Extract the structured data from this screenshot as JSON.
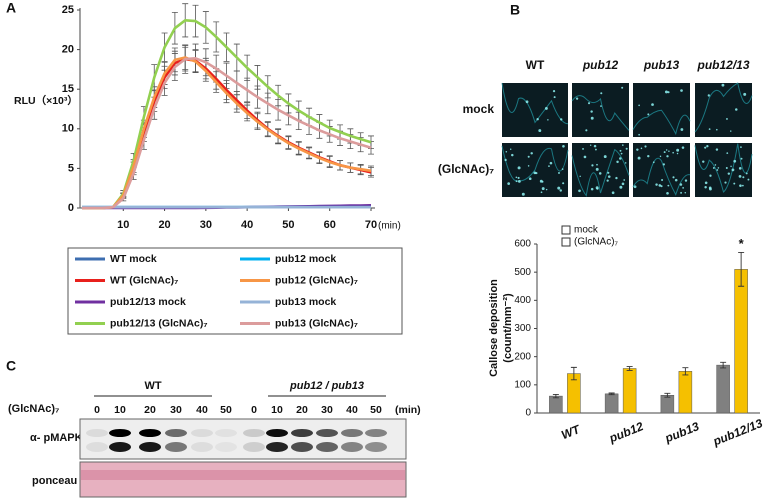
{
  "panel_labels": [
    "A",
    "B",
    "C"
  ],
  "chart_data": [
    {
      "type": "line",
      "ylabel": "RLU（×10³）",
      "xlabel": "(min)",
      "x": [
        0,
        2.5,
        5,
        7.5,
        10,
        12.5,
        15,
        17.5,
        20,
        22.5,
        25,
        27.5,
        30,
        32.5,
        35,
        37.5,
        40,
        42.5,
        45,
        47.5,
        50,
        52.5,
        55,
        57.5,
        60,
        62.5,
        65,
        67.5,
        70
      ],
      "xlim": [
        0,
        70
      ],
      "xticks": [
        10,
        20,
        30,
        40,
        50,
        60,
        70
      ],
      "ylim": [
        0,
        25
      ],
      "yticks": [
        0,
        5,
        10,
        15,
        20,
        25
      ],
      "legend": "bottom",
      "series": [
        {
          "name": "WT mock",
          "color": "#3d6eb0",
          "values": [
            0.1,
            0.1,
            0.1,
            0.1,
            0.1,
            0.1,
            0.1,
            0.1,
            0.1,
            0.1,
            0.1,
            0.1,
            0.1,
            0.1,
            0.1,
            0.1,
            0.1,
            0.1,
            0.1,
            0.1,
            0.1,
            0.1,
            0.1,
            0.1,
            0.1,
            0.1,
            0.1,
            0.1,
            0.1
          ]
        },
        {
          "name": "WT (GlcNAc)₇",
          "color": "#e8201c",
          "values": [
            0,
            0,
            0,
            0.1,
            1.5,
            5,
            9.5,
            13.5,
            16.5,
            18.3,
            18.8,
            18.6,
            17.6,
            16.3,
            14.9,
            13.6,
            12.3,
            11.1,
            10,
            9.1,
            8.3,
            7.6,
            7,
            6.4,
            5.9,
            5.4,
            5.1,
            4.8,
            4.5
          ],
          "errors": [
            0,
            0,
            0,
            0.1,
            0.3,
            0.8,
            1.1,
            1.3,
            1.4,
            1.5,
            1.5,
            1.4,
            1.3,
            1.3,
            1.2,
            1.1,
            1,
            1,
            0.9,
            0.9,
            0.8,
            0.8,
            0.7,
            0.7,
            0.7,
            0.6,
            0.6,
            0.6,
            0.6
          ]
        },
        {
          "name": "pub12/13 mock",
          "color": "#7030a0",
          "values": [
            0,
            0,
            0,
            0,
            0,
            0,
            0,
            0,
            0,
            0,
            0,
            0,
            0.02,
            0.04,
            0.06,
            0.08,
            0.1,
            0.12,
            0.14,
            0.16,
            0.18,
            0.2,
            0.22,
            0.24,
            0.26,
            0.28,
            0.3,
            0.32,
            0.34
          ]
        },
        {
          "name": "pub12/13 (GlcNAc)₇",
          "color": "#92d050",
          "values": [
            0,
            0,
            0,
            0.1,
            1.8,
            6,
            11.5,
            16.5,
            20.3,
            22.7,
            23.7,
            23.6,
            22.8,
            21.6,
            20.3,
            19,
            17.7,
            16.5,
            15.3,
            14.2,
            13.2,
            12.3,
            11.5,
            10.8,
            10.1,
            9.6,
            9.1,
            8.7,
            8.3
          ],
          "errors": [
            0,
            0,
            0,
            0.1,
            0.4,
            0.9,
            1.3,
            1.6,
            1.8,
            2,
            2.1,
            2,
            2,
            1.9,
            1.8,
            1.7,
            1.6,
            1.5,
            1.4,
            1.3,
            1.2,
            1.2,
            1.1,
            1,
            1,
            0.9,
            0.9,
            0.8,
            0.8
          ]
        },
        {
          "name": "pub12 mock",
          "color": "#00b0f0",
          "values": [
            0.1,
            0.1,
            0.1,
            0.1,
            0.1,
            0.1,
            0.1,
            0.1,
            0.1,
            0.1,
            0.1,
            0.1,
            0.1,
            0.1,
            0.1,
            0.1,
            0.1,
            0.1,
            0.1,
            0.1,
            0.1,
            0.1,
            0.1,
            0.1,
            0.1,
            0.1,
            0.1,
            0.1,
            0.1
          ]
        },
        {
          "name": "pub12 (GlcNAc)₇",
          "color": "#f79646",
          "values": [
            0,
            0,
            0,
            0.1,
            1.6,
            5.3,
            10,
            14,
            17,
            18.7,
            19,
            18.5,
            17.3,
            15.9,
            14.5,
            13.2,
            12,
            10.9,
            9.9,
            9,
            8.2,
            7.5,
            6.9,
            6.3,
            5.8,
            5.4,
            5.1,
            4.9,
            4.7
          ],
          "errors": [
            0,
            0,
            0,
            0.1,
            0.3,
            0.8,
            1.1,
            1.3,
            1.4,
            1.5,
            1.5,
            1.4,
            1.3,
            1.3,
            1.2,
            1.1,
            1,
            1,
            0.9,
            0.9,
            0.8,
            0.8,
            0.7,
            0.7,
            0.7,
            0.6,
            0.6,
            0.6,
            0.6
          ]
        },
        {
          "name": "pub13 mock",
          "color": "#95b3d7",
          "values": [
            0.1,
            0.1,
            0.1,
            0.1,
            0.1,
            0.1,
            0.1,
            0.1,
            0.1,
            0.1,
            0.1,
            0.1,
            0.1,
            0.1,
            0.1,
            0.1,
            0.1,
            0.1,
            0.1,
            0.1,
            0.1,
            0.1,
            0.1,
            0.1,
            0.1,
            0.1,
            0.1,
            0.1,
            0.1
          ]
        },
        {
          "name": "pub13 (GlcNAc)₇",
          "color": "#dc9c9c",
          "values": [
            0,
            0,
            0,
            0.1,
            1.2,
            4.4,
            8.6,
            12.6,
            15.8,
            17.8,
            18.8,
            18.9,
            18.4,
            17.6,
            16.7,
            15.8,
            14.9,
            14,
            13.2,
            12.4,
            11.7,
            11,
            10.4,
            9.8,
            9.3,
            8.8,
            8.4,
            8,
            7.6
          ],
          "errors": [
            0,
            0,
            0,
            0.1,
            0.3,
            0.8,
            1.2,
            1.4,
            1.6,
            1.7,
            1.8,
            1.8,
            1.7,
            1.7,
            1.6,
            1.5,
            1.5,
            1.4,
            1.3,
            1.3,
            1.2,
            1.1,
            1.1,
            1,
            1,
            0.9,
            0.9,
            0.9,
            0.8
          ]
        }
      ]
    },
    {
      "type": "bar",
      "ylabel": [
        "Callose deposition",
        "(count/mm⁻²)"
      ],
      "categories": [
        "WT",
        "pub12",
        "pub13",
        "pub12/13"
      ],
      "ylim": [
        0,
        600
      ],
      "yticks": [
        0,
        100,
        200,
        300,
        400,
        500,
        600
      ],
      "annotation": "*",
      "series": [
        {
          "name": "mock",
          "color": "#808080",
          "values": [
            60,
            68,
            63,
            170
          ],
          "errors": [
            6,
            3,
            7,
            10
          ]
        },
        {
          "name": "(GlcNAc)₇",
          "color": "#f5c000",
          "values": [
            140,
            158,
            148,
            510
          ],
          "errors": [
            22,
            7,
            13,
            60
          ]
        }
      ]
    }
  ],
  "micrographs": {
    "columns": [
      "WT",
      "pub12",
      "pub13",
      "pub12/13"
    ],
    "rows": [
      "mock",
      "(GlcNAc)₇"
    ]
  },
  "blot": {
    "treatment": "(GlcNAc)₇",
    "unit": "(min)",
    "groups": [
      {
        "name": "WT",
        "times": [
          0,
          10,
          20,
          30,
          40,
          50
        ]
      },
      {
        "name": "pub12 / pub13",
        "times": [
          0,
          10,
          20,
          30,
          40,
          50
        ]
      }
    ],
    "rows": [
      "α- pMAPK",
      "ponceau"
    ]
  }
}
